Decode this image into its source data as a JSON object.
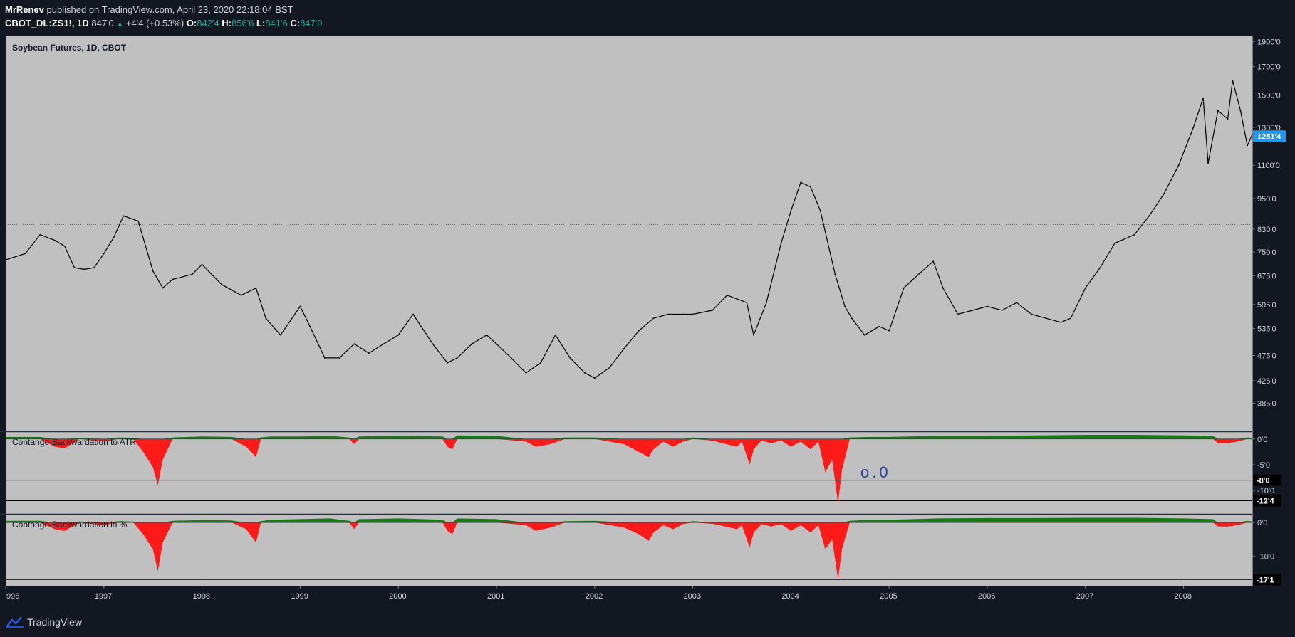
{
  "header": {
    "author": "MrRenev",
    "published_text": "published on TradingView.com, April 23, 2020 22:18:04 BST",
    "symbol": "CBOT_DL:ZS1!, 1D",
    "last_price": "847'0",
    "change": "+4'4 (+0.53%)",
    "open_label": "O:",
    "open_value": "842'4",
    "high_label": "H:",
    "high_value": "856'6",
    "low_label": "L:",
    "low_value": "841'6",
    "close_label": "C:",
    "close_value": "847'0"
  },
  "footer": {
    "brand": "TradingView"
  },
  "colors": {
    "background": "#131722",
    "plot_background": "#c0c0c0",
    "price_line": "#000000",
    "positive_fill": "#1a7a1a",
    "negative_fill": "#ff1a1a",
    "last_price_badge": "#2196f3",
    "reference_line": "#2962ff",
    "annotation_text": "#2b3f9e"
  },
  "chart_data": [
    {
      "type": "line",
      "title": "Soybean Futures, 1D, CBOT",
      "x_axis": {
        "ticks": [
          "996",
          "1997",
          "1998",
          "1999",
          "2000",
          "2001",
          "2002",
          "2003",
          "2004",
          "2005",
          "2006",
          "2007",
          "2008"
        ],
        "range": [
          1996.0,
          2008.7
        ]
      },
      "y_axis": {
        "scale": "log",
        "ticks": [
          "1900'0",
          "1700'0",
          "1500'0",
          "1300'0",
          "1100'0",
          "950'0",
          "830'0",
          "750'0",
          "675'0",
          "595'0",
          "535'0",
          "475'0",
          "425'0",
          "385'0"
        ],
        "range": [
          340,
          1950
        ]
      },
      "last_value_label": "1251'4",
      "horizontal_line_value": 847,
      "series": [
        {
          "x": [
            1996.0,
            1996.2,
            1996.35,
            1996.5,
            1996.6,
            1996.7,
            1996.8,
            1996.9,
            1997.0,
            1997.1,
            1997.2,
            1997.35,
            1997.5,
            1997.6,
            1997.7,
            1997.9,
            1998.0,
            1998.2,
            1998.4,
            1998.55,
            1998.65,
            1998.8,
            1999.0,
            1999.1,
            1999.25,
            1999.4,
            1999.55,
            1999.7,
            1999.85,
            2000.0,
            2000.15,
            2000.35,
            2000.5,
            2000.6,
            2000.75,
            2000.9,
            2001.0,
            2001.15,
            2001.3,
            2001.45,
            2001.6,
            2001.75,
            2001.9,
            2002.0,
            2002.15,
            2002.3,
            2002.45,
            2002.6,
            2002.75,
            2002.9,
            2003.0,
            2003.2,
            2003.35,
            2003.55,
            2003.62,
            2003.75,
            2003.9,
            2004.0,
            2004.1,
            2004.2,
            2004.3,
            2004.45,
            2004.55,
            2004.62,
            2004.75,
            2004.9,
            2005.0,
            2005.15,
            2005.3,
            2005.45,
            2005.55,
            2005.7,
            2005.85,
            2006.0,
            2006.15,
            2006.3,
            2006.45,
            2006.6,
            2006.75,
            2006.85,
            2007.0,
            2007.15,
            2007.3,
            2007.5,
            2007.65,
            2007.8,
            2007.95,
            2008.1,
            2008.2,
            2008.25,
            2008.35,
            2008.45,
            2008.5,
            2008.58,
            2008.65,
            2008.7
          ],
          "y": [
            725,
            745,
            810,
            790,
            770,
            700,
            695,
            700,
            745,
            800,
            880,
            860,
            690,
            640,
            665,
            680,
            710,
            650,
            620,
            640,
            560,
            520,
            590,
            540,
            470,
            470,
            500,
            480,
            500,
            520,
            570,
            500,
            460,
            470,
            500,
            520,
            500,
            470,
            440,
            460,
            520,
            470,
            440,
            430,
            450,
            490,
            530,
            560,
            570,
            570,
            570,
            580,
            620,
            600,
            520,
            600,
            780,
            900,
            1020,
            1000,
            900,
            680,
            590,
            560,
            520,
            540,
            530,
            640,
            680,
            720,
            640,
            570,
            580,
            590,
            580,
            600,
            570,
            560,
            550,
            560,
            640,
            700,
            780,
            810,
            880,
            970,
            1100,
            1300,
            1480,
            1110,
            1400,
            1350,
            1600,
            1400,
            1200,
            1260
          ]
        }
      ]
    },
    {
      "type": "area",
      "title": "Contango-Backwardation to ATR",
      "y_axis": {
        "ticks": [
          "0'0",
          "-5'0",
          "-10'0"
        ],
        "range": [
          -14,
          0.8
        ]
      },
      "value_labels": [
        "-8'0",
        "-12'4"
      ],
      "annotation": "o.0",
      "series": [
        {
          "x": [
            1996.0,
            1996.35,
            1996.5,
            1996.6,
            1996.75,
            1997.0,
            1997.15,
            1997.3,
            1997.4,
            1997.5,
            1997.55,
            1997.6,
            1997.7,
            1998.0,
            1998.3,
            1998.45,
            1998.55,
            1998.6,
            1998.7,
            1999.0,
            1999.3,
            1999.5,
            1999.55,
            1999.6,
            2000.0,
            2000.45,
            2000.5,
            2000.55,
            2000.6,
            2001.0,
            2001.3,
            2001.4,
            2001.55,
            2001.7,
            2002.0,
            2002.3,
            2002.45,
            2002.55,
            2002.6,
            2002.7,
            2002.8,
            2002.9,
            2003.0,
            2003.2,
            2003.3,
            2003.45,
            2003.5,
            2003.58,
            2003.62,
            2003.7,
            2003.8,
            2003.9,
            2004.0,
            2004.1,
            2004.2,
            2004.28,
            2004.35,
            2004.42,
            2004.48,
            2004.52,
            2004.6,
            2004.8,
            2005.0,
            2005.5,
            2006.0,
            2006.5,
            2007.0,
            2007.5,
            2008.0,
            2008.3,
            2008.35,
            2008.45,
            2008.55,
            2008.65,
            2008.7
          ],
          "y": [
            0.4,
            0.4,
            -1.5,
            -1.8,
            0.2,
            -0.5,
            0.3,
            0.2,
            -2.5,
            -5.5,
            -9.0,
            -4.0,
            0.3,
            0.5,
            0.4,
            -1.5,
            -3.5,
            0.3,
            0.5,
            0.5,
            0.6,
            0.3,
            -1.0,
            0.5,
            0.6,
            0.5,
            -1.5,
            -2.0,
            0.7,
            0.6,
            -0.5,
            -1.5,
            -1.0,
            0.3,
            0.3,
            -1.0,
            -2.5,
            -3.5,
            -2.0,
            -0.5,
            -1.5,
            -0.5,
            0.3,
            -0.3,
            -0.8,
            -1.5,
            -0.5,
            -5.0,
            -2.0,
            -0.3,
            -0.8,
            -0.3,
            -1.5,
            -0.5,
            -2.0,
            -0.5,
            -6.5,
            -4.0,
            -12.5,
            -6.0,
            0.3,
            0.4,
            0.4,
            0.6,
            0.6,
            0.7,
            0.8,
            0.8,
            0.7,
            0.6,
            -0.8,
            -0.8,
            -0.5,
            0.3,
            0.2
          ]
        }
      ]
    },
    {
      "type": "area",
      "title": "Contango-Backwardation in %",
      "y_axis": {
        "ticks": [
          "0'0",
          "-10'0"
        ],
        "range": [
          -18,
          1.5
        ]
      },
      "value_labels": [
        "-17'1"
      ],
      "series": [
        {
          "x": [
            1996.0,
            1996.35,
            1996.5,
            1996.6,
            1996.75,
            1997.0,
            1997.15,
            1997.3,
            1997.4,
            1997.5,
            1997.55,
            1997.6,
            1997.7,
            1998.0,
            1998.3,
            1998.45,
            1998.55,
            1998.6,
            1998.7,
            1999.0,
            1999.3,
            1999.5,
            1999.55,
            1999.6,
            2000.0,
            2000.45,
            2000.5,
            2000.55,
            2000.6,
            2001.0,
            2001.3,
            2001.4,
            2001.55,
            2001.7,
            2002.0,
            2002.3,
            2002.45,
            2002.55,
            2002.6,
            2002.7,
            2002.8,
            2002.9,
            2003.0,
            2003.2,
            2003.3,
            2003.45,
            2003.5,
            2003.58,
            2003.62,
            2003.7,
            2003.8,
            2003.9,
            2004.0,
            2004.1,
            2004.2,
            2004.28,
            2004.35,
            2004.42,
            2004.48,
            2004.52,
            2004.6,
            2004.8,
            2005.0,
            2005.5,
            2006.0,
            2006.5,
            2007.0,
            2007.5,
            2008.0,
            2008.3,
            2008.35,
            2008.45,
            2008.55,
            2008.65,
            2008.7
          ],
          "y": [
            0.5,
            0.5,
            -2.0,
            -2.5,
            0.3,
            -0.8,
            0.4,
            0.3,
            -3.5,
            -8.0,
            -14.5,
            -6.0,
            0.5,
            0.7,
            0.6,
            -2.0,
            -6.0,
            0.4,
            0.8,
            1.0,
            1.2,
            0.5,
            -2.0,
            1.0,
            1.2,
            0.8,
            -2.5,
            -3.5,
            1.2,
            1.0,
            -0.8,
            -2.5,
            -1.5,
            0.4,
            0.5,
            -1.5,
            -3.5,
            -5.5,
            -3.0,
            -0.8,
            -2.0,
            -0.5,
            0.4,
            -0.4,
            -1.0,
            -2.0,
            -0.8,
            -7.5,
            -3.0,
            -0.5,
            -1.2,
            -0.5,
            -2.5,
            -0.8,
            -3.0,
            -0.8,
            -8.0,
            -5.0,
            -17.0,
            -8.0,
            0.5,
            0.8,
            0.8,
            1.2,
            1.3,
            1.3,
            1.4,
            1.4,
            1.2,
            1.0,
            -1.2,
            -1.2,
            -0.8,
            0.5,
            0.3
          ]
        }
      ]
    }
  ]
}
